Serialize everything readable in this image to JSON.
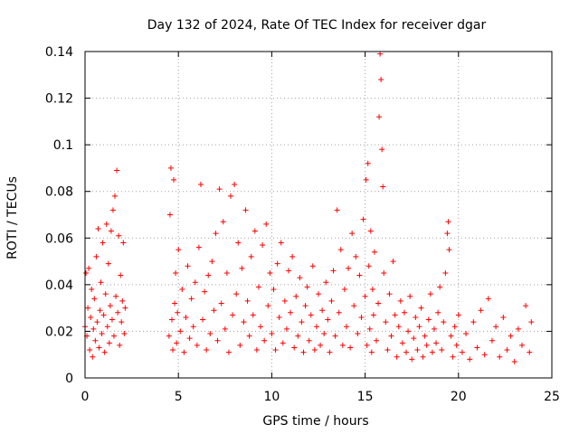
{
  "chart_data": {
    "type": "scatter",
    "title": "Day 132 of 2024, Rate Of TEC Index for receiver dgar",
    "xlabel": "GPS time / hours",
    "ylabel": "ROTI / TECUs",
    "xlim": [
      0,
      25
    ],
    "ylim": [
      0,
      0.14
    ],
    "x_ticks": [
      0,
      5,
      10,
      15,
      20,
      25
    ],
    "y_ticks": [
      0,
      0.02,
      0.04,
      0.06,
      0.08,
      0.1,
      0.12,
      0.14
    ],
    "x_tick_labels": [
      "0",
      "5",
      "10",
      "15",
      "20",
      "25"
    ],
    "y_tick_labels": [
      "0",
      "0.02",
      "0.04",
      "0.06",
      "0.08",
      "0.1",
      "0.12",
      "0.14"
    ],
    "grid": true,
    "marker": "plus",
    "color": "#ff0000",
    "series": [
      {
        "name": "",
        "points": [
          [
            0.0,
            0.022
          ],
          [
            0.05,
            0.045
          ],
          [
            0.1,
            0.018
          ],
          [
            0.15,
            0.03
          ],
          [
            0.2,
            0.047
          ],
          [
            0.25,
            0.012
          ],
          [
            0.3,
            0.026
          ],
          [
            0.35,
            0.038
          ],
          [
            0.4,
            0.009
          ],
          [
            0.45,
            0.021
          ],
          [
            0.5,
            0.034
          ],
          [
            0.55,
            0.016
          ],
          [
            0.6,
            0.052
          ],
          [
            0.65,
            0.024
          ],
          [
            0.7,
            0.064
          ],
          [
            0.75,
            0.013
          ],
          [
            0.8,
            0.029
          ],
          [
            0.85,
            0.041
          ],
          [
            0.9,
            0.019
          ],
          [
            0.95,
            0.058
          ],
          [
            1.0,
            0.027
          ],
          [
            1.05,
            0.011
          ],
          [
            1.1,
            0.036
          ],
          [
            1.15,
            0.066
          ],
          [
            1.2,
            0.022
          ],
          [
            1.25,
            0.049
          ],
          [
            1.3,
            0.015
          ],
          [
            1.35,
            0.031
          ],
          [
            1.4,
            0.063
          ],
          [
            1.45,
            0.025
          ],
          [
            1.5,
            0.072
          ],
          [
            1.55,
            0.018
          ],
          [
            1.6,
            0.078
          ],
          [
            1.65,
            0.035
          ],
          [
            1.7,
            0.089
          ],
          [
            1.75,
            0.028
          ],
          [
            1.8,
            0.061
          ],
          [
            1.85,
            0.014
          ],
          [
            1.9,
            0.044
          ],
          [
            1.95,
            0.024
          ],
          [
            2.0,
            0.033
          ],
          [
            2.05,
            0.058
          ],
          [
            2.1,
            0.019
          ],
          [
            2.15,
            0.03
          ],
          [
            4.5,
            0.018
          ],
          [
            4.55,
            0.07
          ],
          [
            4.6,
            0.09
          ],
          [
            4.65,
            0.025
          ],
          [
            4.7,
            0.012
          ],
          [
            4.75,
            0.085
          ],
          [
            4.8,
            0.032
          ],
          [
            4.85,
            0.045
          ],
          [
            4.9,
            0.015
          ],
          [
            4.95,
            0.028
          ],
          [
            5.0,
            0.055
          ],
          [
            5.1,
            0.02
          ],
          [
            5.2,
            0.038
          ],
          [
            5.3,
            0.011
          ],
          [
            5.4,
            0.026
          ],
          [
            5.5,
            0.048
          ],
          [
            5.6,
            0.017
          ],
          [
            5.7,
            0.034
          ],
          [
            5.8,
            0.022
          ],
          [
            5.9,
            0.041
          ],
          [
            6.0,
            0.014
          ],
          [
            6.1,
            0.056
          ],
          [
            6.2,
            0.083
          ],
          [
            6.3,
            0.025
          ],
          [
            6.4,
            0.037
          ],
          [
            6.5,
            0.012
          ],
          [
            6.6,
            0.044
          ],
          [
            6.7,
            0.019
          ],
          [
            6.8,
            0.05
          ],
          [
            6.9,
            0.029
          ],
          [
            7.0,
            0.062
          ],
          [
            7.1,
            0.016
          ],
          [
            7.2,
            0.081
          ],
          [
            7.3,
            0.032
          ],
          [
            7.4,
            0.067
          ],
          [
            7.5,
            0.021
          ],
          [
            7.6,
            0.045
          ],
          [
            7.7,
            0.011
          ],
          [
            7.8,
            0.078
          ],
          [
            7.9,
            0.027
          ],
          [
            8.0,
            0.083
          ],
          [
            8.1,
            0.036
          ],
          [
            8.2,
            0.058
          ],
          [
            8.3,
            0.014
          ],
          [
            8.4,
            0.047
          ],
          [
            8.5,
            0.024
          ],
          [
            8.6,
            0.072
          ],
          [
            8.7,
            0.033
          ],
          [
            8.8,
            0.018
          ],
          [
            8.9,
            0.052
          ],
          [
            9.0,
            0.027
          ],
          [
            9.1,
            0.063
          ],
          [
            9.2,
            0.012
          ],
          [
            9.3,
            0.039
          ],
          [
            9.4,
            0.022
          ],
          [
            9.5,
            0.057
          ],
          [
            9.6,
            0.016
          ],
          [
            9.7,
            0.066
          ],
          [
            9.8,
            0.031
          ],
          [
            9.9,
            0.045
          ],
          [
            10.0,
            0.019
          ],
          [
            10.1,
            0.038
          ],
          [
            10.2,
            0.012
          ],
          [
            10.3,
            0.049
          ],
          [
            10.4,
            0.026
          ],
          [
            10.5,
            0.058
          ],
          [
            10.6,
            0.015
          ],
          [
            10.7,
            0.033
          ],
          [
            10.8,
            0.021
          ],
          [
            10.9,
            0.046
          ],
          [
            11.0,
            0.028
          ],
          [
            11.1,
            0.052
          ],
          [
            11.2,
            0.013
          ],
          [
            11.3,
            0.035
          ],
          [
            11.4,
            0.018
          ],
          [
            11.5,
            0.043
          ],
          [
            11.6,
            0.024
          ],
          [
            11.7,
            0.011
          ],
          [
            11.8,
            0.031
          ],
          [
            11.9,
            0.039
          ],
          [
            12.0,
            0.016
          ],
          [
            12.1,
            0.027
          ],
          [
            12.2,
            0.048
          ],
          [
            12.3,
            0.012
          ],
          [
            12.4,
            0.022
          ],
          [
            12.5,
            0.036
          ],
          [
            12.6,
            0.014
          ],
          [
            12.7,
            0.029
          ],
          [
            12.8,
            0.019
          ],
          [
            12.9,
            0.041
          ],
          [
            13.0,
            0.025
          ],
          [
            13.1,
            0.011
          ],
          [
            13.2,
            0.033
          ],
          [
            13.3,
            0.046
          ],
          [
            13.4,
            0.018
          ],
          [
            13.5,
            0.072
          ],
          [
            13.6,
            0.028
          ],
          [
            13.7,
            0.055
          ],
          [
            13.8,
            0.014
          ],
          [
            13.9,
            0.038
          ],
          [
            14.0,
            0.022
          ],
          [
            14.1,
            0.047
          ],
          [
            14.2,
            0.013
          ],
          [
            14.3,
            0.062
          ],
          [
            14.4,
            0.031
          ],
          [
            14.5,
            0.052
          ],
          [
            14.6,
            0.019
          ],
          [
            14.7,
            0.044
          ],
          [
            14.8,
            0.026
          ],
          [
            14.9,
            0.068
          ],
          [
            15.0,
            0.035
          ],
          [
            15.05,
            0.085
          ],
          [
            15.1,
            0.014
          ],
          [
            15.15,
            0.092
          ],
          [
            15.2,
            0.048
          ],
          [
            15.25,
            0.021
          ],
          [
            15.3,
            0.063
          ],
          [
            15.35,
            0.011
          ],
          [
            15.4,
            0.038
          ],
          [
            15.45,
            0.027
          ],
          [
            15.5,
            0.054
          ],
          [
            15.6,
            0.016
          ],
          [
            15.7,
            0.032
          ],
          [
            15.75,
            0.112
          ],
          [
            15.8,
            0.139
          ],
          [
            15.85,
            0.128
          ],
          [
            15.9,
            0.098
          ],
          [
            15.95,
            0.082
          ],
          [
            16.0,
            0.045
          ],
          [
            16.1,
            0.024
          ],
          [
            16.2,
            0.012
          ],
          [
            16.3,
            0.036
          ],
          [
            16.4,
            0.018
          ],
          [
            16.5,
            0.05
          ],
          [
            16.6,
            0.027
          ],
          [
            16.7,
            0.009
          ],
          [
            16.8,
            0.022
          ],
          [
            16.9,
            0.033
          ],
          [
            17.0,
            0.015
          ],
          [
            17.1,
            0.028
          ],
          [
            17.2,
            0.011
          ],
          [
            17.3,
            0.02
          ],
          [
            17.4,
            0.035
          ],
          [
            17.5,
            0.008
          ],
          [
            17.6,
            0.017
          ],
          [
            17.7,
            0.026
          ],
          [
            17.8,
            0.012
          ],
          [
            17.9,
            0.022
          ],
          [
            18.0,
            0.03
          ],
          [
            18.1,
            0.009
          ],
          [
            18.2,
            0.018
          ],
          [
            18.3,
            0.014
          ],
          [
            18.4,
            0.025
          ],
          [
            18.5,
            0.036
          ],
          [
            18.6,
            0.011
          ],
          [
            18.7,
            0.021
          ],
          [
            18.8,
            0.015
          ],
          [
            18.9,
            0.028
          ],
          [
            19.0,
            0.039
          ],
          [
            19.1,
            0.012
          ],
          [
            19.2,
            0.024
          ],
          [
            19.3,
            0.045
          ],
          [
            19.4,
            0.062
          ],
          [
            19.45,
            0.067
          ],
          [
            19.5,
            0.055
          ],
          [
            19.6,
            0.018
          ],
          [
            19.7,
            0.009
          ],
          [
            19.8,
            0.022
          ],
          [
            19.9,
            0.014
          ],
          [
            20.0,
            0.027
          ],
          [
            20.2,
            0.011
          ],
          [
            20.4,
            0.019
          ],
          [
            20.6,
            0.008
          ],
          [
            20.8,
            0.024
          ],
          [
            21.0,
            0.013
          ],
          [
            21.2,
            0.029
          ],
          [
            21.4,
            0.01
          ],
          [
            21.6,
            0.034
          ],
          [
            21.8,
            0.016
          ],
          [
            22.0,
            0.022
          ],
          [
            22.2,
            0.009
          ],
          [
            22.4,
            0.026
          ],
          [
            22.6,
            0.012
          ],
          [
            22.8,
            0.018
          ],
          [
            23.0,
            0.007
          ],
          [
            23.2,
            0.021
          ],
          [
            23.4,
            0.014
          ],
          [
            23.6,
            0.031
          ],
          [
            23.8,
            0.011
          ],
          [
            23.9,
            0.024
          ]
        ]
      }
    ]
  }
}
